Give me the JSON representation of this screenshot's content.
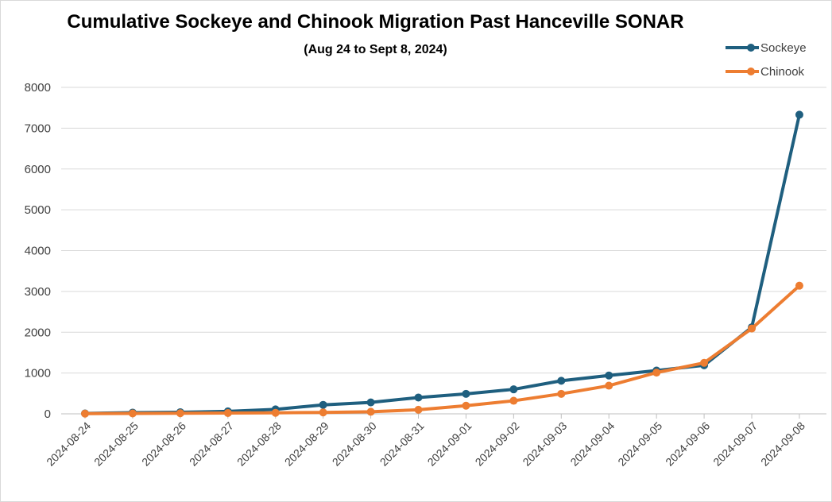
{
  "chart_data": {
    "type": "line",
    "title": "Cumulative Sockeye and Chinook Migration Past Hanceville SONAR",
    "subtitle": "(Aug 24 to Sept 8, 2024)",
    "xlabel": "",
    "ylabel": "",
    "ylim": [
      0,
      8000
    ],
    "yticks": [
      0,
      1000,
      2000,
      3000,
      4000,
      5000,
      6000,
      7000,
      8000
    ],
    "grid": true,
    "legend_position": "top-right",
    "categories": [
      "2024-08-24",
      "2024-08-25",
      "2024-08-26",
      "2024-08-27",
      "2024-08-28",
      "2024-08-29",
      "2024-08-30",
      "2024-08-31",
      "2024-09-01",
      "2024-09-02",
      "2024-09-03",
      "2024-09-04",
      "2024-09-05",
      "2024-09-06",
      "2024-09-07",
      "2024-09-08"
    ],
    "series": [
      {
        "name": "Sockeye",
        "color": "#1f5f7f",
        "values": [
          10,
          30,
          40,
          60,
          110,
          220,
          280,
          400,
          490,
          600,
          810,
          940,
          1060,
          1190,
          2120,
          7330
        ]
      },
      {
        "name": "Chinook",
        "color": "#ed7d31",
        "values": [
          5,
          10,
          15,
          20,
          25,
          35,
          50,
          100,
          200,
          320,
          490,
          690,
          1010,
          1250,
          2090,
          3140
        ]
      }
    ]
  }
}
